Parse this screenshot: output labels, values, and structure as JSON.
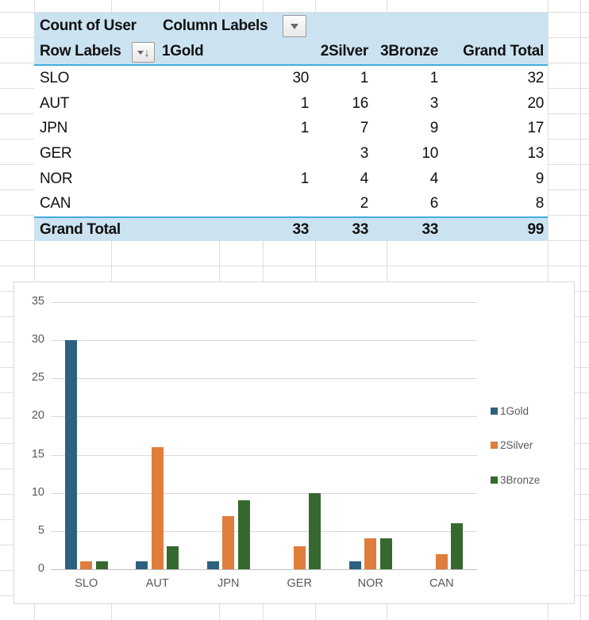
{
  "app": {
    "description": "Spreadsheet with pivot table and pivot chart"
  },
  "pivot_table": {
    "title_cell": "Count of User",
    "column_labels_cell": "Column Labels",
    "row_labels_cell": "Row Labels",
    "columns": [
      "1Gold",
      "2Silver",
      "3Bronze",
      "Grand Total"
    ],
    "rows": [
      {
        "label": "SLO",
        "values": [
          "30",
          "1",
          "1",
          "32"
        ]
      },
      {
        "label": "AUT",
        "values": [
          "1",
          "16",
          "3",
          "20"
        ]
      },
      {
        "label": "JPN",
        "values": [
          "1",
          "7",
          "9",
          "17"
        ]
      },
      {
        "label": "GER",
        "values": [
          "",
          "3",
          "10",
          "13"
        ]
      },
      {
        "label": "NOR",
        "values": [
          "1",
          "4",
          "4",
          "9"
        ]
      },
      {
        "label": "CAN",
        "values": [
          "",
          "2",
          "6",
          "8"
        ]
      }
    ],
    "grand_total": {
      "label": "Grand Total",
      "values": [
        "33",
        "33",
        "33",
        "99"
      ]
    },
    "icons": {
      "column_filter": "dropdown-triangle-icon",
      "row_filter": "dropdown-triangle-with-sort-descending-icon"
    },
    "colors": {
      "header_fill": "#cbe3f1",
      "accent_line": "#45acdf"
    }
  },
  "chart_data": {
    "type": "bar",
    "title": "",
    "xlabel": "",
    "ylabel": "",
    "categories": [
      "SLO",
      "AUT",
      "JPN",
      "GER",
      "NOR",
      "CAN"
    ],
    "series": [
      {
        "name": "1Gold",
        "color": "#2e617f",
        "values": [
          30,
          1,
          1,
          0,
          1,
          0
        ]
      },
      {
        "name": "2Silver",
        "color": "#e07c3c",
        "values": [
          1,
          16,
          7,
          3,
          4,
          2
        ]
      },
      {
        "name": "3Bronze",
        "color": "#35692d",
        "values": [
          1,
          3,
          9,
          10,
          4,
          6
        ]
      }
    ],
    "ylim": [
      0,
      35
    ],
    "yticks": [
      0,
      5,
      10,
      15,
      20,
      25,
      30,
      35
    ],
    "grid": true,
    "legend_position": "right",
    "axis_text_color": "#595959",
    "gridline_color": "#d9d9d9"
  }
}
